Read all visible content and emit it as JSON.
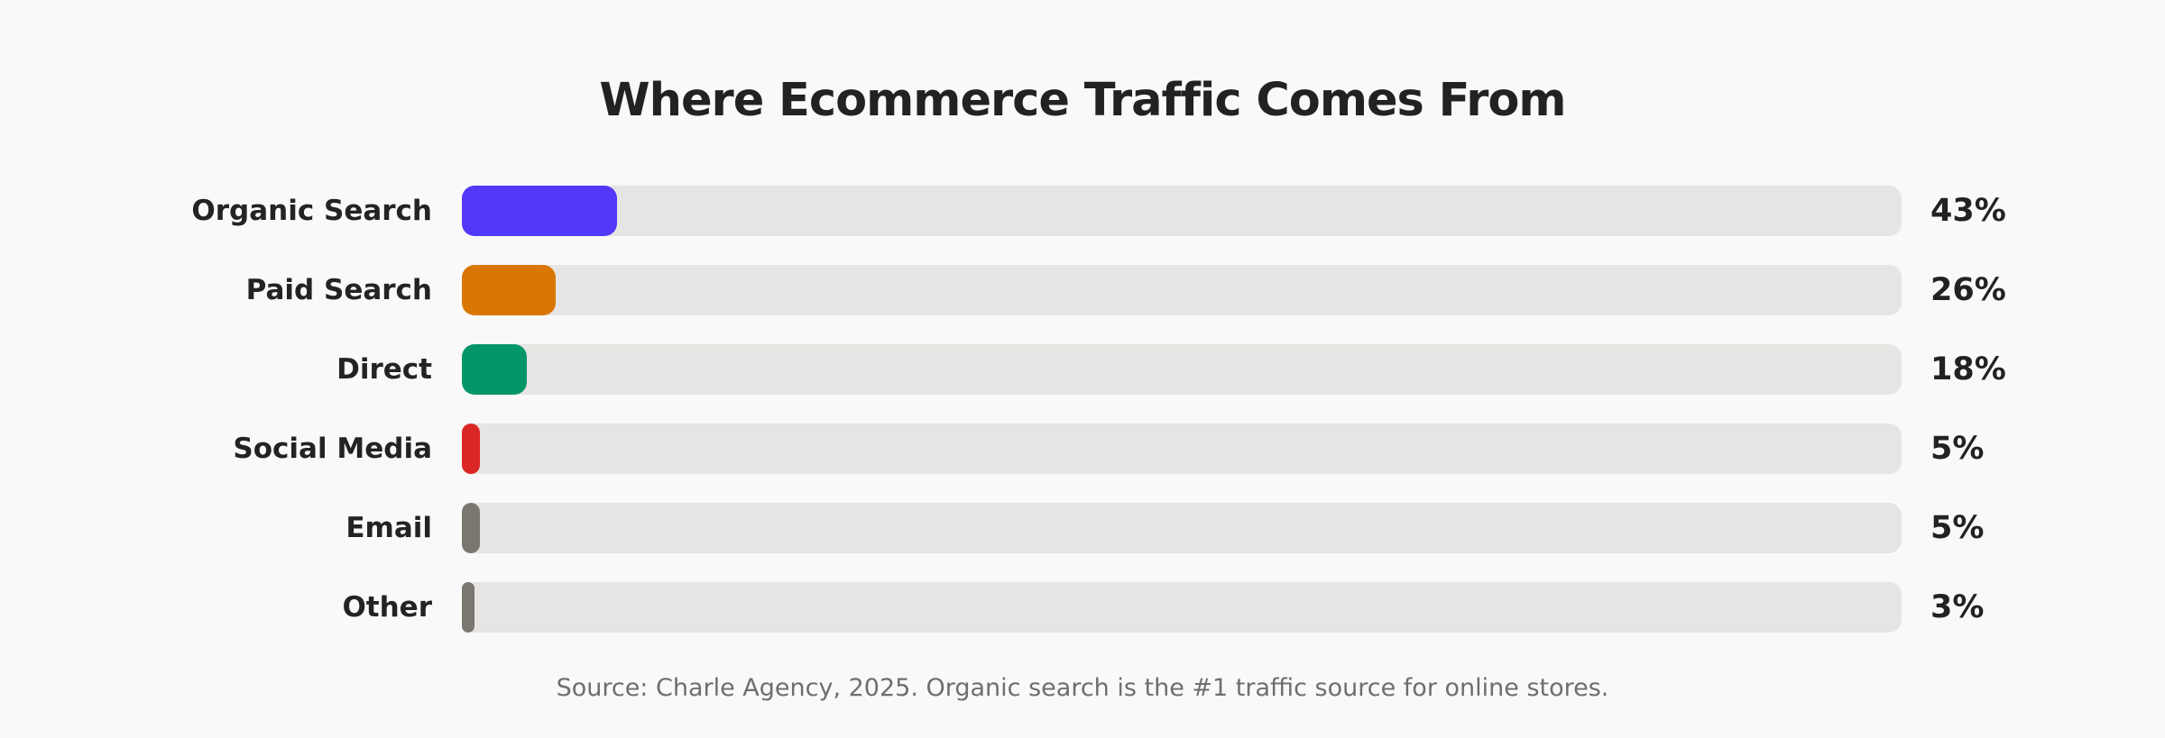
{
  "chart_data": {
    "type": "bar",
    "orientation": "horizontal",
    "title": "Where Ecommerce Traffic Comes From",
    "categories": [
      "Organic Search",
      "Paid Search",
      "Direct",
      "Social Media",
      "Email",
      "Other"
    ],
    "values": [
      43,
      26,
      18,
      5,
      5,
      3
    ],
    "value_labels": [
      "43%",
      "26%",
      "18%",
      "5%",
      "5%",
      "3%"
    ],
    "colors": [
      "#5239f9",
      "#d97705",
      "#049669",
      "#db2626",
      "#7a7770",
      "#7a7770"
    ],
    "track_color": "#e6e5e3",
    "xlim": [
      0,
      400
    ],
    "grid": false,
    "legend": "none",
    "source": "Source: Charle Agency, 2025. Organic search is the #1 traffic source for online stores."
  }
}
